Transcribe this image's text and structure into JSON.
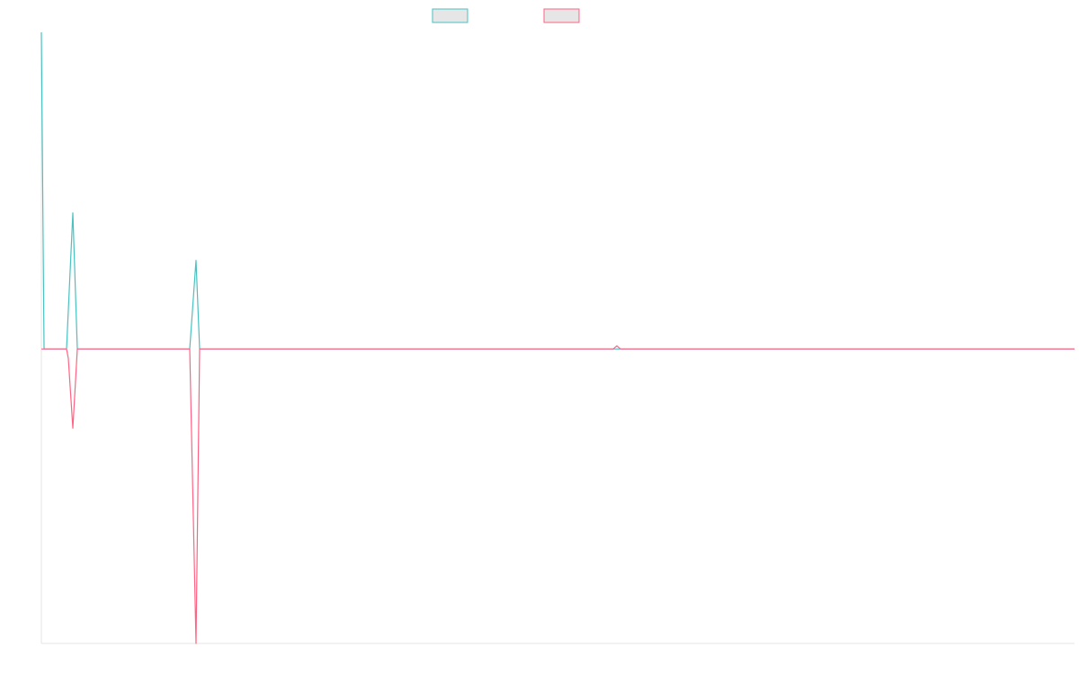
{
  "chart_data": {
    "type": "line",
    "xlim": [
      0,
      1149
    ],
    "ylim": [
      -93,
      100
    ],
    "series": [
      {
        "color": "#4bc0c0",
        "x": [
          0,
          3,
          28,
          35,
          40,
          165,
          172,
          176,
          1149
        ],
        "values": [
          100,
          0,
          0,
          43,
          0,
          0,
          28,
          0,
          0
        ]
      },
      {
        "color": "#ff6384",
        "x": [
          0,
          28,
          30,
          35,
          40,
          165,
          172,
          176,
          636,
          640,
          644,
          1149
        ],
        "values": [
          0,
          0,
          -3,
          -25,
          0,
          0,
          -93,
          0,
          0,
          1,
          0,
          0
        ]
      }
    ]
  }
}
